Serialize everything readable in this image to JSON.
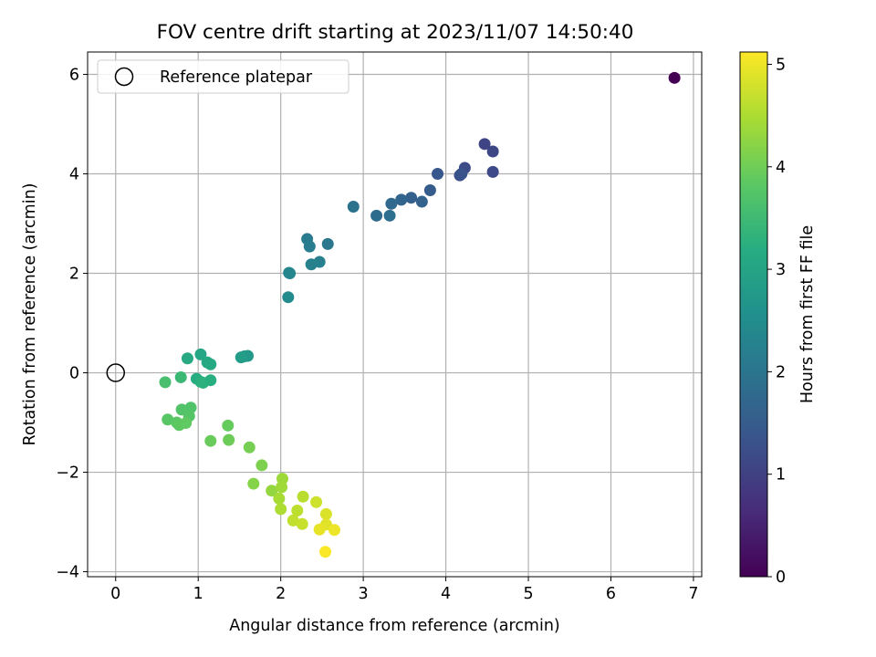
{
  "chart_data": {
    "type": "scatter",
    "title": "FOV centre drift starting at 2023/11/07 14:50:40",
    "xlabel": "Angular distance from reference (arcmin)",
    "ylabel": "Rotation from reference (arcmin)",
    "xlim": [
      -0.34,
      7.1
    ],
    "ylim": [
      -4.1,
      6.45
    ],
    "x_ticks": [
      0,
      1,
      2,
      3,
      4,
      5,
      6,
      7
    ],
    "y_ticks": [
      -4,
      -2,
      0,
      2,
      4,
      6
    ],
    "grid": true,
    "legend": {
      "placement": "top-left",
      "entries": [
        "Reference platepar"
      ]
    },
    "reference_point": {
      "name": "Reference platepar",
      "x": 0,
      "y": 0
    },
    "colorbar": {
      "label": "Hours from first FF file",
      "colormap": "viridis",
      "range": [
        0,
        5.12
      ],
      "ticks": [
        0,
        1,
        2,
        3,
        4,
        5
      ]
    },
    "points": [
      {
        "x": 6.77,
        "y": 5.93,
        "c": 0.0
      },
      {
        "x": 4.47,
        "y": 4.6,
        "c": 1.05
      },
      {
        "x": 4.57,
        "y": 4.45,
        "c": 1.1
      },
      {
        "x": 4.23,
        "y": 4.12,
        "c": 1.2
      },
      {
        "x": 4.57,
        "y": 4.04,
        "c": 1.15
      },
      {
        "x": 4.17,
        "y": 3.97,
        "c": 1.28
      },
      {
        "x": 4.19,
        "y": 4.0,
        "c": 1.32
      },
      {
        "x": 3.9,
        "y": 4.0,
        "c": 1.4
      },
      {
        "x": 3.81,
        "y": 3.67,
        "c": 1.5
      },
      {
        "x": 3.58,
        "y": 3.52,
        "c": 1.58
      },
      {
        "x": 3.71,
        "y": 3.44,
        "c": 1.62
      },
      {
        "x": 3.46,
        "y": 3.48,
        "c": 1.68
      },
      {
        "x": 3.34,
        "y": 3.4,
        "c": 1.75
      },
      {
        "x": 3.16,
        "y": 3.16,
        "c": 1.82
      },
      {
        "x": 3.32,
        "y": 3.16,
        "c": 1.87
      },
      {
        "x": 2.88,
        "y": 3.34,
        "c": 1.95
      },
      {
        "x": 2.32,
        "y": 2.69,
        "c": 2.12
      },
      {
        "x": 2.35,
        "y": 2.54,
        "c": 2.18
      },
      {
        "x": 2.57,
        "y": 2.59,
        "c": 2.05
      },
      {
        "x": 2.47,
        "y": 2.23,
        "c": 2.22
      },
      {
        "x": 2.37,
        "y": 2.18,
        "c": 2.26
      },
      {
        "x": 2.1,
        "y": 2.01,
        "c": 2.3
      },
      {
        "x": 2.11,
        "y": 2.0,
        "c": 2.35
      },
      {
        "x": 2.09,
        "y": 1.52,
        "c": 2.45
      },
      {
        "x": 1.6,
        "y": 0.34,
        "c": 2.75
      },
      {
        "x": 1.56,
        "y": 0.33,
        "c": 2.78
      },
      {
        "x": 1.52,
        "y": 0.31,
        "c": 2.82
      },
      {
        "x": 1.03,
        "y": 0.37,
        "c": 3.05
      },
      {
        "x": 0.87,
        "y": 0.29,
        "c": 3.1
      },
      {
        "x": 1.11,
        "y": 0.21,
        "c": 3.08
      },
      {
        "x": 1.15,
        "y": 0.17,
        "c": 3.12
      },
      {
        "x": 0.98,
        "y": -0.12,
        "c": 3.2
      },
      {
        "x": 1.03,
        "y": -0.18,
        "c": 3.25
      },
      {
        "x": 1.06,
        "y": -0.2,
        "c": 3.28
      },
      {
        "x": 1.15,
        "y": -0.15,
        "c": 3.22
      },
      {
        "x": 0.79,
        "y": -0.09,
        "c": 3.45
      },
      {
        "x": 0.6,
        "y": -0.19,
        "c": 3.6
      },
      {
        "x": 0.91,
        "y": -0.7,
        "c": 3.7
      },
      {
        "x": 0.8,
        "y": -0.74,
        "c": 3.72
      },
      {
        "x": 0.89,
        "y": -0.87,
        "c": 3.75
      },
      {
        "x": 0.63,
        "y": -0.94,
        "c": 3.8
      },
      {
        "x": 0.74,
        "y": -1.0,
        "c": 3.82
      },
      {
        "x": 0.77,
        "y": -1.05,
        "c": 3.85
      },
      {
        "x": 0.85,
        "y": -1.01,
        "c": 3.87
      },
      {
        "x": 1.36,
        "y": -1.06,
        "c": 3.92
      },
      {
        "x": 1.15,
        "y": -1.37,
        "c": 3.95
      },
      {
        "x": 1.37,
        "y": -1.35,
        "c": 3.98
      },
      {
        "x": 1.62,
        "y": -1.5,
        "c": 4.05
      },
      {
        "x": 1.77,
        "y": -1.86,
        "c": 4.12
      },
      {
        "x": 1.67,
        "y": -2.23,
        "c": 4.18
      },
      {
        "x": 1.89,
        "y": -2.37,
        "c": 4.3
      },
      {
        "x": 2.02,
        "y": -2.13,
        "c": 4.38
      },
      {
        "x": 2.01,
        "y": -2.3,
        "c": 4.4
      },
      {
        "x": 1.98,
        "y": -2.53,
        "c": 4.45
      },
      {
        "x": 2.0,
        "y": -2.74,
        "c": 4.5
      },
      {
        "x": 2.27,
        "y": -2.49,
        "c": 4.6
      },
      {
        "x": 2.2,
        "y": -2.77,
        "c": 4.62
      },
      {
        "x": 2.15,
        "y": -2.97,
        "c": 4.65
      },
      {
        "x": 2.26,
        "y": -3.04,
        "c": 4.7
      },
      {
        "x": 2.43,
        "y": -2.6,
        "c": 4.75
      },
      {
        "x": 2.55,
        "y": -2.84,
        "c": 4.85
      },
      {
        "x": 2.55,
        "y": -3.05,
        "c": 4.9
      },
      {
        "x": 2.47,
        "y": -3.15,
        "c": 4.95
      },
      {
        "x": 2.65,
        "y": -3.16,
        "c": 5.0
      },
      {
        "x": 2.54,
        "y": -3.6,
        "c": 5.1
      }
    ]
  }
}
